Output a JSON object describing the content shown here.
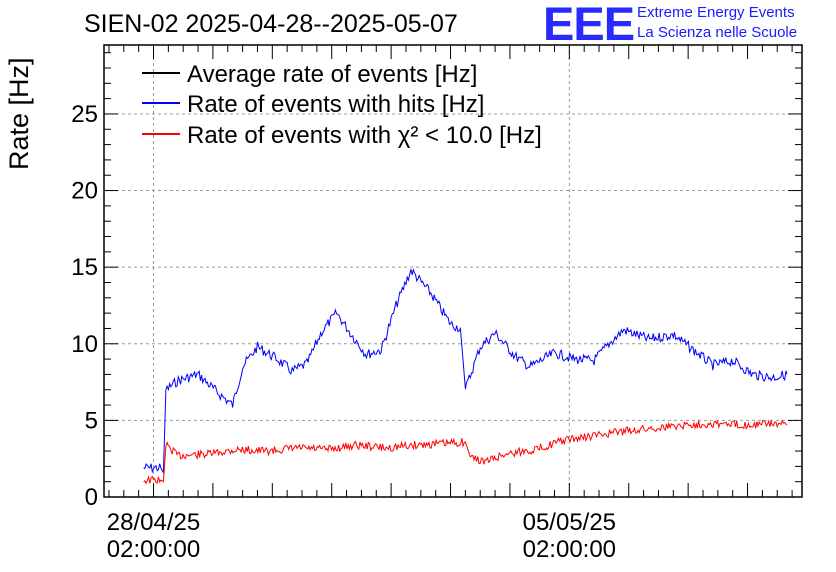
{
  "header": {
    "title": "SIEN-02 2025-04-28--2025-05-07",
    "logo": "EEE",
    "logo_line1": "Extreme Energy Events",
    "logo_line2": "La Scienza nelle Scuole"
  },
  "colors": {
    "average": "#000000",
    "hits": "#0000ff",
    "chi2": "#ff0000",
    "grid": "#999999"
  },
  "chart_data": {
    "type": "line",
    "title": "SIEN-02 2025-04-28--2025-05-07",
    "ylabel": "Rate [Hz]",
    "xlabel": "",
    "ylim": [
      0,
      29.5
    ],
    "yticks": [
      0,
      5,
      10,
      15,
      20,
      25
    ],
    "xlim": [
      "2025-04-27 06:00",
      "2025-05-09 00:00"
    ],
    "xticks": [
      {
        "x": "2025-04-28 02:00",
        "label1": "28/04/25",
        "label2": "02:00:00"
      },
      {
        "x": "2025-05-05 02:00",
        "label1": "05/05/25",
        "label2": "02:00:00"
      }
    ],
    "grid": true,
    "legend_position": "top-left",
    "series": [
      {
        "name": "Average rate of events [Hz]",
        "color": "#000000",
        "points": []
      },
      {
        "name": "Rate of events with hits [Hz]",
        "color": "#0000ff",
        "points": [
          [
            "2025-04-27 22:00",
            1.9
          ],
          [
            "2025-04-28 05:00",
            1.9
          ],
          [
            "2025-04-28 06:00",
            1.6
          ],
          [
            "2025-04-28 07:00",
            7.0
          ],
          [
            "2025-04-28 12:00",
            7.6
          ],
          [
            "2025-04-28 20:00",
            8.0
          ],
          [
            "2025-04-29 04:00",
            6.8
          ],
          [
            "2025-04-29 10:00",
            6.0
          ],
          [
            "2025-04-29 14:00",
            8.5
          ],
          [
            "2025-04-29 20:00",
            9.8
          ],
          [
            "2025-04-30 04:00",
            9.0
          ],
          [
            "2025-04-30 10:00",
            8.2
          ],
          [
            "2025-04-30 16:00",
            8.7
          ],
          [
            "2025-04-30 22:00",
            10.8
          ],
          [
            "2025-05-01 04:00",
            12.0
          ],
          [
            "2025-05-01 10:00",
            10.6
          ],
          [
            "2025-05-01 16:00",
            9.3
          ],
          [
            "2025-05-01 22:00",
            9.6
          ],
          [
            "2025-05-02 04:00",
            12.5
          ],
          [
            "2025-05-02 10:00",
            14.8
          ],
          [
            "2025-05-02 18:00",
            13.3
          ],
          [
            "2025-05-03 02:00",
            11.3
          ],
          [
            "2025-05-03 06:00",
            11.0
          ],
          [
            "2025-05-03 08:00",
            7.0
          ],
          [
            "2025-05-03 14:00",
            9.8
          ],
          [
            "2025-05-03 20:00",
            10.7
          ],
          [
            "2025-05-04 04:00",
            9.2
          ],
          [
            "2025-05-04 10:00",
            8.5
          ],
          [
            "2025-05-04 20:00",
            9.4
          ],
          [
            "2025-05-05 04:00",
            9.0
          ],
          [
            "2025-05-05 12:00",
            8.9
          ],
          [
            "2025-05-05 18:00",
            10.0
          ],
          [
            "2025-05-06 00:00",
            10.9
          ],
          [
            "2025-05-06 10:00",
            10.3
          ],
          [
            "2025-05-06 20:00",
            10.6
          ],
          [
            "2025-05-07 04:00",
            9.6
          ],
          [
            "2025-05-07 12:00",
            8.6
          ],
          [
            "2025-05-07 20:00",
            8.9
          ],
          [
            "2025-05-08 04:00",
            8.0
          ],
          [
            "2025-05-08 12:00",
            7.8
          ],
          [
            "2025-05-08 18:00",
            8.0
          ]
        ]
      },
      {
        "name": "Rate of events with χ² < 10.0 [Hz]",
        "color": "#ff0000",
        "points": [
          [
            "2025-04-27 22:00",
            1.1
          ],
          [
            "2025-04-28 05:00",
            1.1
          ],
          [
            "2025-04-28 06:00",
            1.0
          ],
          [
            "2025-04-28 07:00",
            3.4
          ],
          [
            "2025-04-28 12:00",
            2.7
          ],
          [
            "2025-04-29 00:00",
            2.8
          ],
          [
            "2025-04-29 12:00",
            3.1
          ],
          [
            "2025-04-30 00:00",
            3.0
          ],
          [
            "2025-04-30 12:00",
            3.2
          ],
          [
            "2025-05-01 00:00",
            3.1
          ],
          [
            "2025-05-01 12:00",
            3.4
          ],
          [
            "2025-05-02 00:00",
            3.2
          ],
          [
            "2025-05-02 12:00",
            3.4
          ],
          [
            "2025-05-03 00:00",
            3.5
          ],
          [
            "2025-05-03 08:00",
            3.6
          ],
          [
            "2025-05-03 10:00",
            2.6
          ],
          [
            "2025-05-03 16:00",
            2.3
          ],
          [
            "2025-05-04 00:00",
            2.8
          ],
          [
            "2025-05-04 12:00",
            3.1
          ],
          [
            "2025-05-05 00:00",
            3.7
          ],
          [
            "2025-05-05 12:00",
            4.0
          ],
          [
            "2025-05-06 00:00",
            4.3
          ],
          [
            "2025-05-06 12:00",
            4.5
          ],
          [
            "2025-05-07 00:00",
            4.7
          ],
          [
            "2025-05-07 12:00",
            4.8
          ],
          [
            "2025-05-08 00:00",
            4.7
          ],
          [
            "2025-05-08 12:00",
            4.8
          ],
          [
            "2025-05-08 18:00",
            4.7
          ]
        ]
      }
    ]
  }
}
